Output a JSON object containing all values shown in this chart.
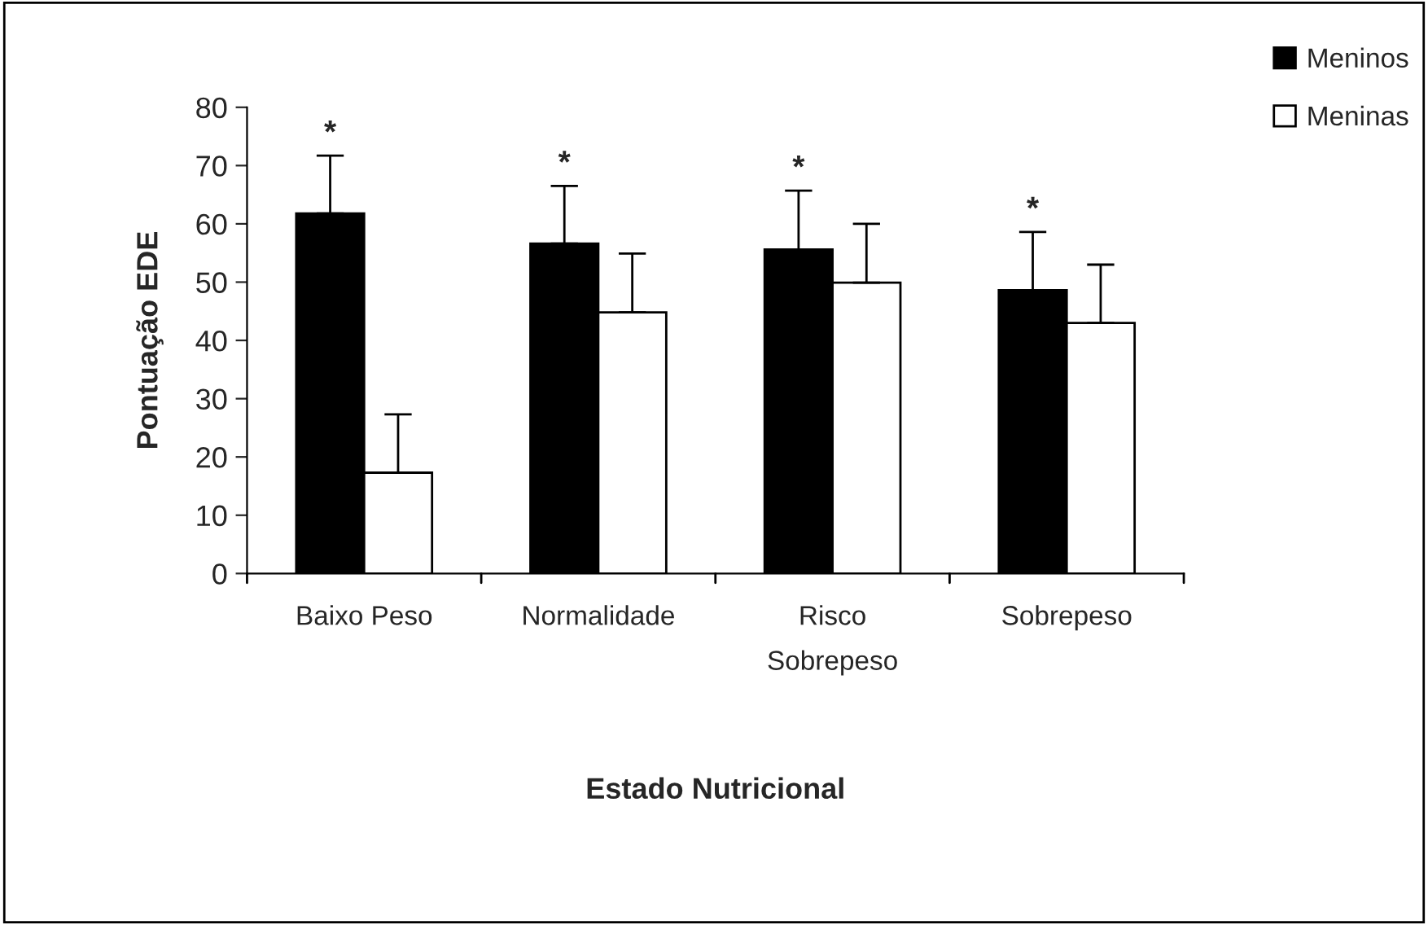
{
  "chart_data": {
    "type": "bar",
    "xlabel": "Estado Nutricional",
    "ylabel": "Pontuação EDE",
    "categories": [
      "Baixo Peso",
      "Normalidade",
      "Risco\nSobrepeso",
      "Sobrepeso"
    ],
    "series": [
      {
        "name": "Meninos",
        "color": "#000000",
        "values": [
          61.8,
          56.6,
          55.6,
          48.6
        ],
        "errors": [
          [
            61.8,
            71.7
          ],
          [
            56.6,
            66.5
          ],
          [
            55.6,
            65.7
          ],
          [
            48.6,
            58.6
          ]
        ]
      },
      {
        "name": "Meninas",
        "color": "#ffffff",
        "values": [
          17.3,
          44.8,
          49.9,
          43.0
        ],
        "errors": [
          [
            17.3,
            27.3
          ],
          [
            44.8,
            54.9
          ],
          [
            49.9,
            60.0
          ],
          [
            43.0,
            53.0
          ]
        ]
      }
    ],
    "annotations": [
      "*",
      "*",
      "*",
      "*"
    ],
    "ylim": [
      0,
      80
    ],
    "yticks": [
      0,
      10,
      20,
      30,
      40,
      50,
      60,
      70,
      80
    ],
    "grid": false,
    "legend": "top right"
  }
}
